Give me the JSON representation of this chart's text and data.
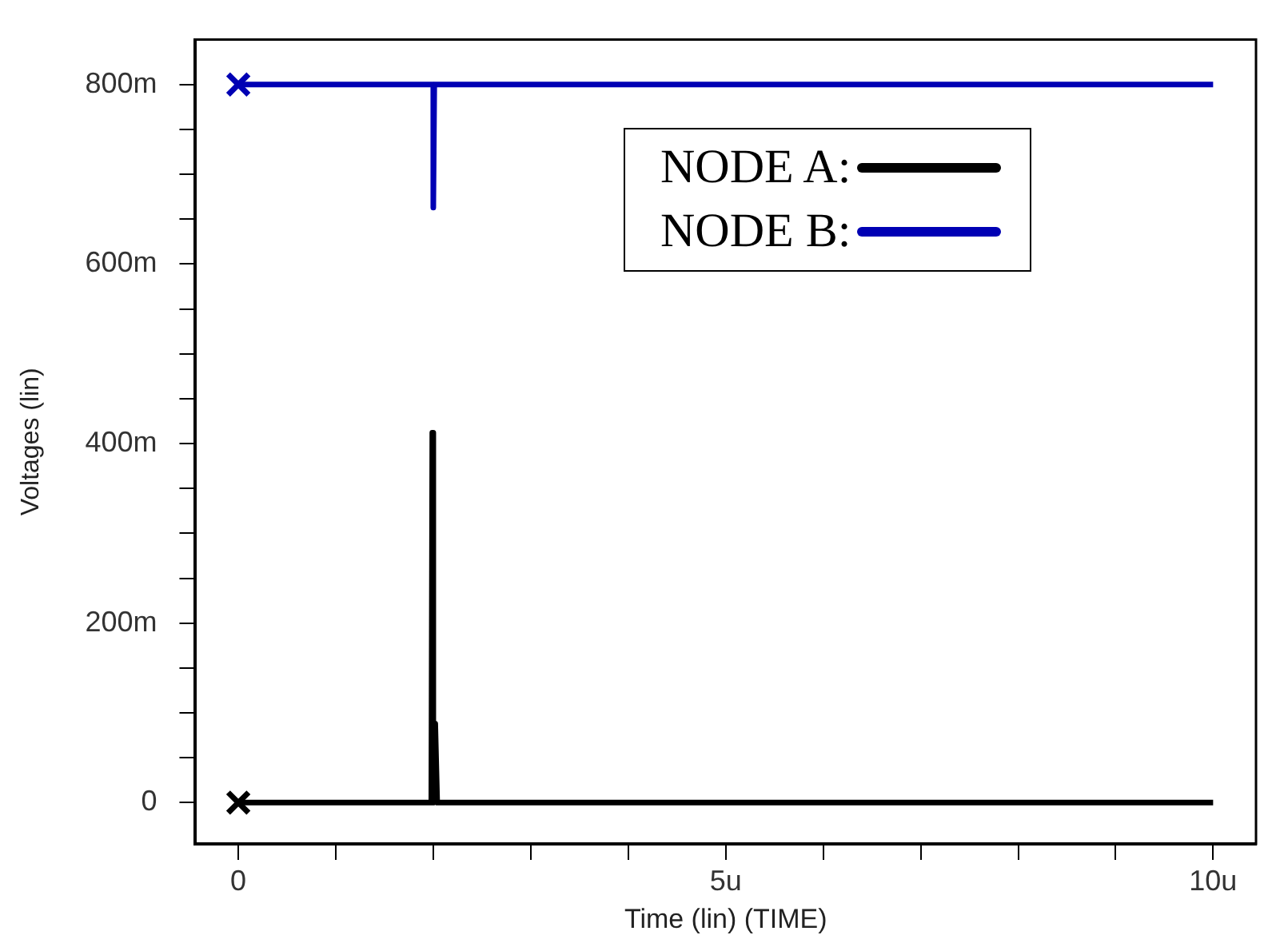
{
  "chart_data": {
    "type": "line",
    "xlabel": "Time (lin) (TIME)",
    "ylabel": "Voltages (lin)",
    "xlim": [
      -0.44,
      10.44
    ],
    "ylim": [
      -46,
      850
    ],
    "xticks": [
      {
        "value": 0,
        "label": "0"
      },
      {
        "value": 1,
        "label": null
      },
      {
        "value": 2,
        "label": null
      },
      {
        "value": 3,
        "label": null
      },
      {
        "value": 4,
        "label": null
      },
      {
        "value": 5,
        "label": "5u"
      },
      {
        "value": 6,
        "label": null
      },
      {
        "value": 7,
        "label": null
      },
      {
        "value": 8,
        "label": null
      },
      {
        "value": 9,
        "label": null
      },
      {
        "value": 10,
        "label": "10u"
      }
    ],
    "yticks": [
      {
        "value": 0,
        "label": "0"
      },
      {
        "value": 50,
        "label": null
      },
      {
        "value": 100,
        "label": null
      },
      {
        "value": 150,
        "label": null
      },
      {
        "value": 200,
        "label": "200m"
      },
      {
        "value": 250,
        "label": null
      },
      {
        "value": 300,
        "label": null
      },
      {
        "value": 350,
        "label": null
      },
      {
        "value": 400,
        "label": "400m"
      },
      {
        "value": 450,
        "label": null
      },
      {
        "value": 500,
        "label": null
      },
      {
        "value": 550,
        "label": null
      },
      {
        "value": 600,
        "label": "600m"
      },
      {
        "value": 650,
        "label": null
      },
      {
        "value": 700,
        "label": null
      },
      {
        "value": 750,
        "label": null
      },
      {
        "value": 800,
        "label": "800m"
      }
    ],
    "grid": false,
    "legend": "top right",
    "line_style": "solid",
    "series": [
      {
        "name": "NODE A:",
        "color": "#000000",
        "x": [
          0,
          1.98,
          1.99,
          2.0,
          2.02,
          2.04,
          10
        ],
        "values": [
          0,
          0,
          412,
          0,
          88,
          0,
          0
        ]
      },
      {
        "name": "NODE B:",
        "color": "#0000b4",
        "x": [
          0,
          2.0,
          2.0,
          2.01,
          10
        ],
        "values": [
          800,
          800,
          663,
          800,
          800
        ]
      },
      {
        "type": "scatter",
        "marker": "cross",
        "color": "#000000",
        "x": [
          0
        ],
        "values": [
          0
        ]
      },
      {
        "type": "scatter",
        "marker": "cross",
        "color": "#0000b4",
        "x": [
          0
        ],
        "values": [
          800
        ]
      }
    ]
  }
}
